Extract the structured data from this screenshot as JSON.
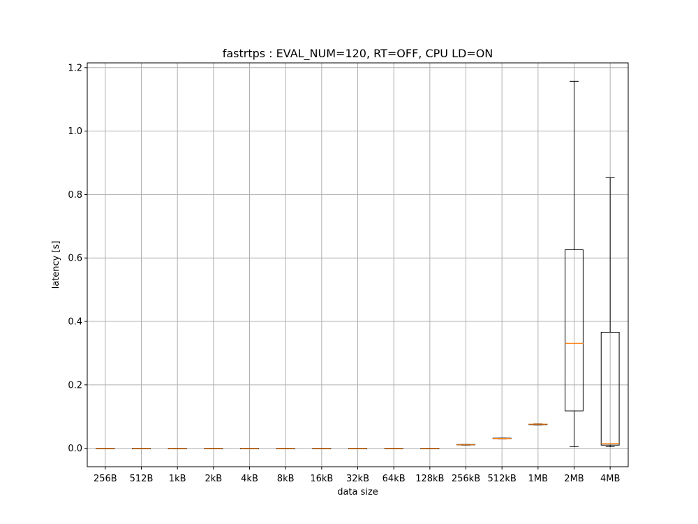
{
  "chart_data": {
    "type": "box",
    "title": "fastrtps : EVAL_NUM=120, RT=OFF, CPU LD=ON",
    "xlabel": "data size",
    "ylabel": "latency [s]",
    "ylim": [
      -0.058,
      1.215
    ],
    "yticks": [
      "0.0",
      "0.2",
      "0.4",
      "0.6",
      "0.8",
      "1.0",
      "1.2"
    ],
    "ytick_values": [
      0.0,
      0.2,
      0.4,
      0.6,
      0.8,
      1.0,
      1.2
    ],
    "grid": true,
    "median_color": "#ff7f0e",
    "categories": [
      "256B",
      "512B",
      "1kB",
      "2kB",
      "4kB",
      "8kB",
      "16kB",
      "32kB",
      "64kB",
      "128kB",
      "256kB",
      "512kB",
      "1MB",
      "2MB",
      "4MB"
    ],
    "boxes": [
      {
        "whislo": 0.0,
        "q1": 0.0,
        "med": 0.0,
        "q3": 0.0,
        "whishi": 0.0
      },
      {
        "whislo": 0.0,
        "q1": 0.0,
        "med": 0.0,
        "q3": 0.0,
        "whishi": 0.0
      },
      {
        "whislo": 0.0,
        "q1": 0.0,
        "med": 0.0,
        "q3": 0.0,
        "whishi": 0.0
      },
      {
        "whislo": 0.0,
        "q1": 0.0,
        "med": 0.0,
        "q3": 0.0,
        "whishi": 0.0
      },
      {
        "whislo": 0.0,
        "q1": 0.0,
        "med": 0.0,
        "q3": 0.0,
        "whishi": 0.0
      },
      {
        "whislo": 0.0,
        "q1": 0.0,
        "med": 0.0,
        "q3": 0.0,
        "whishi": 0.0
      },
      {
        "whislo": 0.0,
        "q1": 0.0,
        "med": 0.0,
        "q3": 0.0,
        "whishi": 0.0
      },
      {
        "whislo": 0.0,
        "q1": 0.0,
        "med": 0.0,
        "q3": 0.0,
        "whishi": 0.0
      },
      {
        "whislo": 0.0,
        "q1": 0.0,
        "med": 0.0,
        "q3": 0.0,
        "whishi": 0.0
      },
      {
        "whislo": 0.0,
        "q1": 0.0,
        "med": 0.0,
        "q3": 0.0,
        "whishi": 0.0
      },
      {
        "whislo": 0.01,
        "q1": 0.011,
        "med": 0.011,
        "q3": 0.012,
        "whishi": 0.012
      },
      {
        "whislo": 0.03,
        "q1": 0.031,
        "med": 0.031,
        "q3": 0.032,
        "whishi": 0.032
      },
      {
        "whislo": 0.074,
        "q1": 0.075,
        "med": 0.076,
        "q3": 0.076,
        "whishi": 0.077
      },
      {
        "whislo": 0.005,
        "q1": 0.118,
        "med": 0.331,
        "q3": 0.626,
        "whishi": 1.157
      },
      {
        "whislo": 0.005,
        "q1": 0.01,
        "med": 0.015,
        "q3": 0.366,
        "whishi": 0.853
      }
    ]
  }
}
